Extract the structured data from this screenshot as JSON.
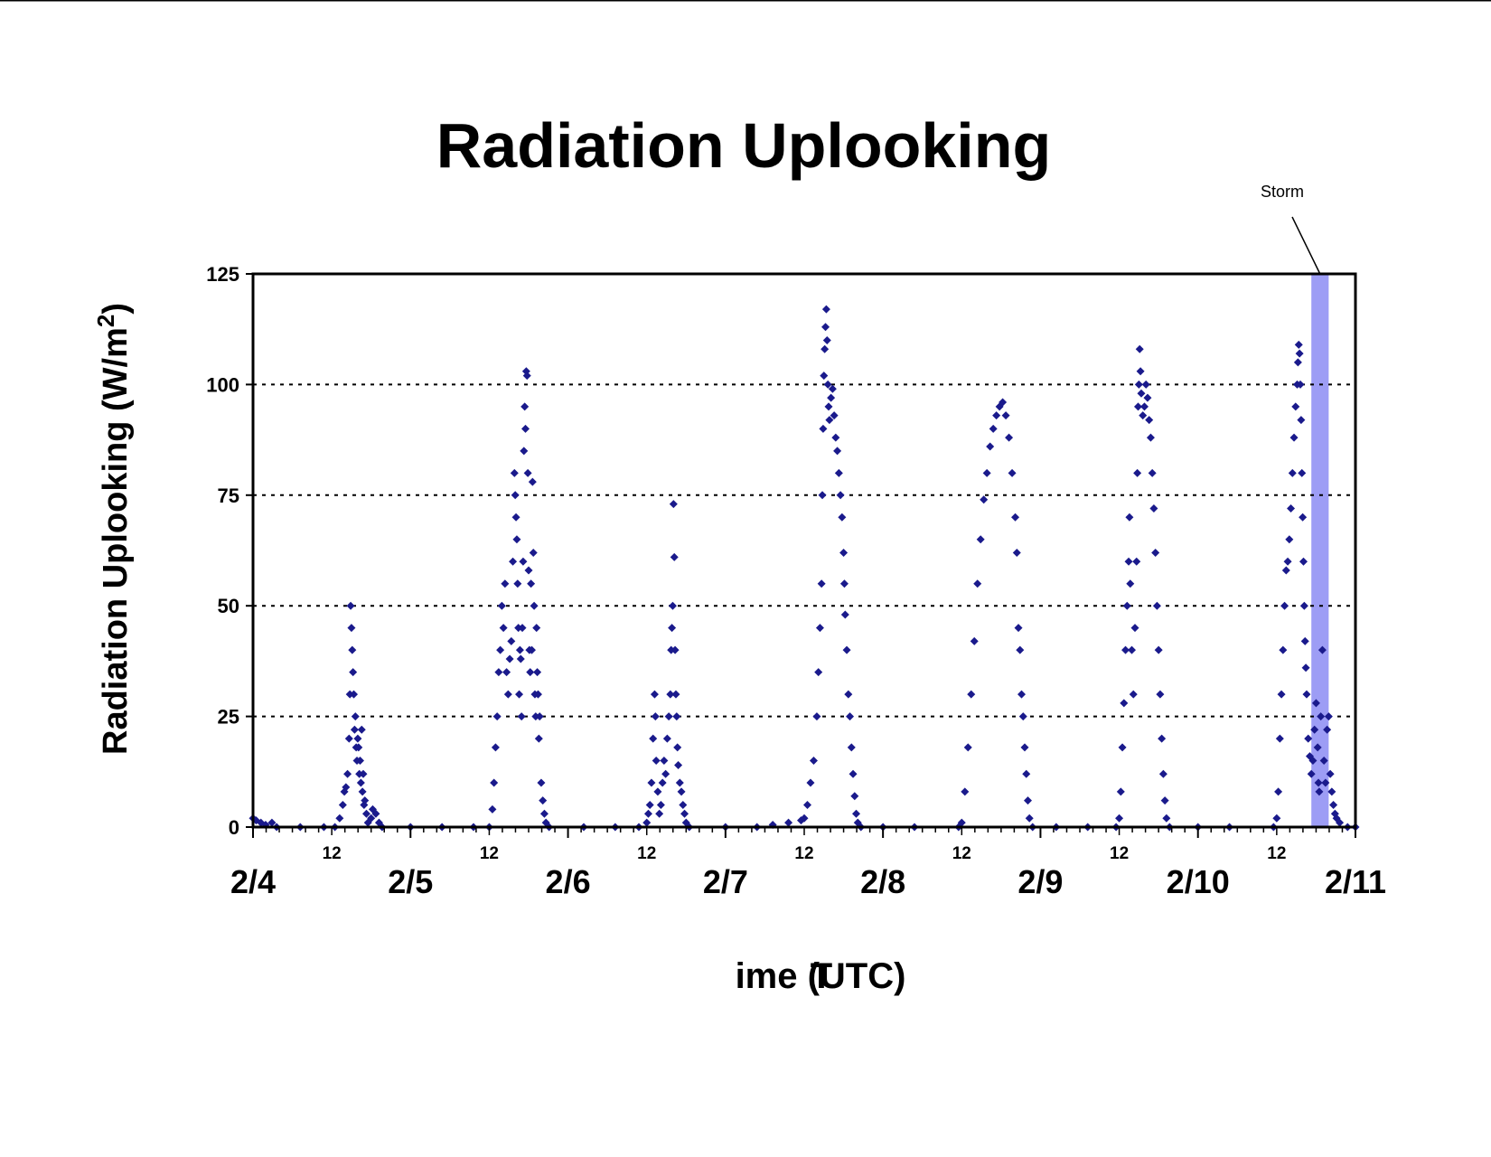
{
  "chart_data": {
    "type": "scatter",
    "title": "Radiation Uplooking",
    "xlabel": "Time (UTC)",
    "ylabel_main": "Radiation Uplooking (W/m",
    "ylabel_sup": "2",
    "ylabel_close": ")",
    "x_unit": "days since 2/4 00:00 UTC",
    "xlim": [
      0,
      7
    ],
    "ylim": [
      0,
      125
    ],
    "yticks": [
      0,
      25,
      50,
      75,
      100,
      125
    ],
    "grid": "horizontal dotted at 25, 50, 75, 100",
    "x_major_labels": [
      "2/4",
      "2/5",
      "2/6",
      "2/7",
      "2/8",
      "2/9",
      "2/10",
      "2/11"
    ],
    "x_minor_label": "12",
    "marker": "diamond",
    "colors": {
      "series": "#1a1a8c",
      "storm_band": "#9d9df5",
      "axis": "#000000"
    },
    "annotation": {
      "text": "Storm",
      "band_start": 6.72,
      "band_end": 6.83
    },
    "series": [
      {
        "points": [
          [
            0.0,
            2
          ],
          [
            0.02,
            1.5
          ],
          [
            0.05,
            1
          ],
          [
            0.08,
            0.5
          ],
          [
            0.12,
            1
          ],
          [
            0.15,
            0
          ],
          [
            0.3,
            0
          ],
          [
            0.45,
            0
          ],
          [
            0.52,
            0
          ],
          [
            0.55,
            2
          ],
          [
            0.57,
            5
          ],
          [
            0.58,
            8
          ],
          [
            0.59,
            9
          ],
          [
            0.6,
            12
          ],
          [
            0.61,
            20
          ],
          [
            0.615,
            30
          ],
          [
            0.62,
            50
          ],
          [
            0.625,
            45
          ],
          [
            0.63,
            40
          ],
          [
            0.635,
            35
          ],
          [
            0.64,
            30
          ],
          [
            0.645,
            22
          ],
          [
            0.65,
            25
          ],
          [
            0.655,
            18
          ],
          [
            0.66,
            15
          ],
          [
            0.665,
            20
          ],
          [
            0.67,
            18
          ],
          [
            0.675,
            12
          ],
          [
            0.68,
            15
          ],
          [
            0.685,
            10
          ],
          [
            0.69,
            22
          ],
          [
            0.695,
            8
          ],
          [
            0.7,
            12
          ],
          [
            0.705,
            5
          ],
          [
            0.71,
            6
          ],
          [
            0.72,
            3
          ],
          [
            0.73,
            1
          ],
          [
            0.75,
            2
          ],
          [
            0.76,
            4
          ],
          [
            0.78,
            3
          ],
          [
            0.8,
            1
          ],
          [
            0.82,
            0
          ],
          [
            1.0,
            0
          ],
          [
            1.2,
            0
          ],
          [
            1.4,
            0
          ],
          [
            1.5,
            0
          ],
          [
            1.52,
            4
          ],
          [
            1.53,
            10
          ],
          [
            1.54,
            18
          ],
          [
            1.55,
            25
          ],
          [
            1.56,
            35
          ],
          [
            1.57,
            40
          ],
          [
            1.58,
            50
          ],
          [
            1.59,
            45
          ],
          [
            1.6,
            55
          ],
          [
            1.61,
            35
          ],
          [
            1.62,
            30
          ],
          [
            1.63,
            38
          ],
          [
            1.64,
            42
          ],
          [
            1.65,
            60
          ],
          [
            1.66,
            80
          ],
          [
            1.665,
            75
          ],
          [
            1.67,
            70
          ],
          [
            1.675,
            65
          ],
          [
            1.68,
            55
          ],
          [
            1.685,
            45
          ],
          [
            1.69,
            30
          ],
          [
            1.695,
            40
          ],
          [
            1.7,
            38
          ],
          [
            1.705,
            25
          ],
          [
            1.71,
            45
          ],
          [
            1.715,
            60
          ],
          [
            1.72,
            85
          ],
          [
            1.725,
            95
          ],
          [
            1.73,
            90
          ],
          [
            1.735,
            103
          ],
          [
            1.74,
            102
          ],
          [
            1.745,
            80
          ],
          [
            1.75,
            58
          ],
          [
            1.755,
            40
          ],
          [
            1.76,
            35
          ],
          [
            1.765,
            55
          ],
          [
            1.77,
            40
          ],
          [
            1.775,
            78
          ],
          [
            1.78,
            62
          ],
          [
            1.785,
            50
          ],
          [
            1.79,
            30
          ],
          [
            1.795,
            25
          ],
          [
            1.8,
            45
          ],
          [
            1.805,
            35
          ],
          [
            1.81,
            30
          ],
          [
            1.815,
            20
          ],
          [
            1.82,
            25
          ],
          [
            1.83,
            10
          ],
          [
            1.84,
            6
          ],
          [
            1.85,
            3
          ],
          [
            1.86,
            1
          ],
          [
            1.88,
            0
          ],
          [
            2.1,
            0
          ],
          [
            2.3,
            0
          ],
          [
            2.45,
            0
          ],
          [
            2.5,
            1
          ],
          [
            2.51,
            3
          ],
          [
            2.52,
            5
          ],
          [
            2.53,
            10
          ],
          [
            2.54,
            20
          ],
          [
            2.55,
            30
          ],
          [
            2.555,
            25
          ],
          [
            2.56,
            15
          ],
          [
            2.57,
            8
          ],
          [
            2.58,
            3
          ],
          [
            2.59,
            5
          ],
          [
            2.6,
            10
          ],
          [
            2.61,
            15
          ],
          [
            2.62,
            12
          ],
          [
            2.63,
            20
          ],
          [
            2.64,
            25
          ],
          [
            2.65,
            30
          ],
          [
            2.655,
            40
          ],
          [
            2.66,
            45
          ],
          [
            2.665,
            50
          ],
          [
            2.67,
            73
          ],
          [
            2.675,
            61
          ],
          [
            2.68,
            40
          ],
          [
            2.685,
            30
          ],
          [
            2.69,
            25
          ],
          [
            2.695,
            18
          ],
          [
            2.7,
            14
          ],
          [
            2.71,
            10
          ],
          [
            2.72,
            8
          ],
          [
            2.73,
            5
          ],
          [
            2.74,
            3
          ],
          [
            2.75,
            1
          ],
          [
            2.77,
            0
          ],
          [
            3.0,
            0
          ],
          [
            3.2,
            0
          ],
          [
            3.3,
            0.5
          ],
          [
            3.4,
            1
          ],
          [
            3.48,
            1.5
          ],
          [
            3.5,
            2
          ],
          [
            3.52,
            5
          ],
          [
            3.54,
            10
          ],
          [
            3.56,
            15
          ],
          [
            3.58,
            25
          ],
          [
            3.59,
            35
          ],
          [
            3.6,
            45
          ],
          [
            3.61,
            55
          ],
          [
            3.615,
            75
          ],
          [
            3.62,
            90
          ],
          [
            3.625,
            102
          ],
          [
            3.63,
            108
          ],
          [
            3.635,
            113
          ],
          [
            3.64,
            117
          ],
          [
            3.645,
            110
          ],
          [
            3.65,
            100
          ],
          [
            3.655,
            95
          ],
          [
            3.66,
            92
          ],
          [
            3.67,
            97
          ],
          [
            3.68,
            99
          ],
          [
            3.69,
            93
          ],
          [
            3.7,
            88
          ],
          [
            3.71,
            85
          ],
          [
            3.72,
            80
          ],
          [
            3.73,
            75
          ],
          [
            3.74,
            70
          ],
          [
            3.75,
            62
          ],
          [
            3.755,
            55
          ],
          [
            3.76,
            48
          ],
          [
            3.77,
            40
          ],
          [
            3.78,
            30
          ],
          [
            3.79,
            25
          ],
          [
            3.8,
            18
          ],
          [
            3.81,
            12
          ],
          [
            3.82,
            7
          ],
          [
            3.83,
            3
          ],
          [
            3.84,
            1
          ],
          [
            3.86,
            0
          ],
          [
            4.0,
            0
          ],
          [
            4.2,
            0
          ],
          [
            4.48,
            0
          ],
          [
            4.5,
            1
          ],
          [
            4.52,
            8
          ],
          [
            4.54,
            18
          ],
          [
            4.56,
            30
          ],
          [
            4.58,
            42
          ],
          [
            4.6,
            55
          ],
          [
            4.62,
            65
          ],
          [
            4.64,
            74
          ],
          [
            4.66,
            80
          ],
          [
            4.68,
            86
          ],
          [
            4.7,
            90
          ],
          [
            4.72,
            93
          ],
          [
            4.74,
            95
          ],
          [
            4.76,
            96
          ],
          [
            4.78,
            93
          ],
          [
            4.8,
            88
          ],
          [
            4.82,
            80
          ],
          [
            4.84,
            70
          ],
          [
            4.85,
            62
          ],
          [
            4.86,
            45
          ],
          [
            4.87,
            40
          ],
          [
            4.88,
            30
          ],
          [
            4.89,
            25
          ],
          [
            4.9,
            18
          ],
          [
            4.91,
            12
          ],
          [
            4.92,
            6
          ],
          [
            4.93,
            2
          ],
          [
            4.95,
            0
          ],
          [
            5.1,
            0
          ],
          [
            5.3,
            0
          ],
          [
            5.48,
            0
          ],
          [
            5.5,
            2
          ],
          [
            5.51,
            8
          ],
          [
            5.52,
            18
          ],
          [
            5.53,
            28
          ],
          [
            5.54,
            40
          ],
          [
            5.55,
            50
          ],
          [
            5.56,
            60
          ],
          [
            5.565,
            70
          ],
          [
            5.57,
            55
          ],
          [
            5.58,
            40
          ],
          [
            5.59,
            30
          ],
          [
            5.6,
            45
          ],
          [
            5.61,
            60
          ],
          [
            5.615,
            80
          ],
          [
            5.62,
            95
          ],
          [
            5.625,
            100
          ],
          [
            5.63,
            108
          ],
          [
            5.635,
            103
          ],
          [
            5.64,
            98
          ],
          [
            5.65,
            93
          ],
          [
            5.66,
            95
          ],
          [
            5.67,
            100
          ],
          [
            5.68,
            97
          ],
          [
            5.69,
            92
          ],
          [
            5.7,
            88
          ],
          [
            5.71,
            80
          ],
          [
            5.72,
            72
          ],
          [
            5.73,
            62
          ],
          [
            5.74,
            50
          ],
          [
            5.75,
            40
          ],
          [
            5.76,
            30
          ],
          [
            5.77,
            20
          ],
          [
            5.78,
            12
          ],
          [
            5.79,
            6
          ],
          [
            5.8,
            2
          ],
          [
            5.82,
            0
          ],
          [
            6.0,
            0
          ],
          [
            6.2,
            0
          ],
          [
            6.48,
            0
          ],
          [
            6.5,
            2
          ],
          [
            6.51,
            8
          ],
          [
            6.52,
            20
          ],
          [
            6.53,
            30
          ],
          [
            6.54,
            40
          ],
          [
            6.55,
            50
          ],
          [
            6.56,
            58
          ],
          [
            6.57,
            60
          ],
          [
            6.58,
            65
          ],
          [
            6.59,
            72
          ],
          [
            6.6,
            80
          ],
          [
            6.61,
            88
          ],
          [
            6.62,
            95
          ],
          [
            6.63,
            100
          ],
          [
            6.635,
            105
          ],
          [
            6.64,
            109
          ],
          [
            6.645,
            107
          ],
          [
            6.65,
            100
          ],
          [
            6.655,
            92
          ],
          [
            6.66,
            80
          ],
          [
            6.665,
            70
          ],
          [
            6.67,
            60
          ],
          [
            6.675,
            50
          ],
          [
            6.68,
            42
          ],
          [
            6.685,
            36
          ],
          [
            6.69,
            30
          ],
          [
            6.7,
            20
          ],
          [
            6.71,
            16
          ],
          [
            6.72,
            12
          ],
          [
            6.73,
            15
          ],
          [
            6.74,
            22
          ],
          [
            6.75,
            28
          ],
          [
            6.76,
            18
          ],
          [
            6.765,
            10
          ],
          [
            6.77,
            8
          ],
          [
            6.78,
            25
          ],
          [
            6.79,
            40
          ],
          [
            6.8,
            15
          ],
          [
            6.81,
            10
          ],
          [
            6.82,
            22
          ],
          [
            6.83,
            25
          ],
          [
            6.84,
            12
          ],
          [
            6.85,
            8
          ],
          [
            6.86,
            5
          ],
          [
            6.87,
            3
          ],
          [
            6.88,
            2
          ],
          [
            6.9,
            1
          ],
          [
            6.95,
            0
          ],
          [
            7.0,
            0
          ]
        ]
      }
    ]
  }
}
